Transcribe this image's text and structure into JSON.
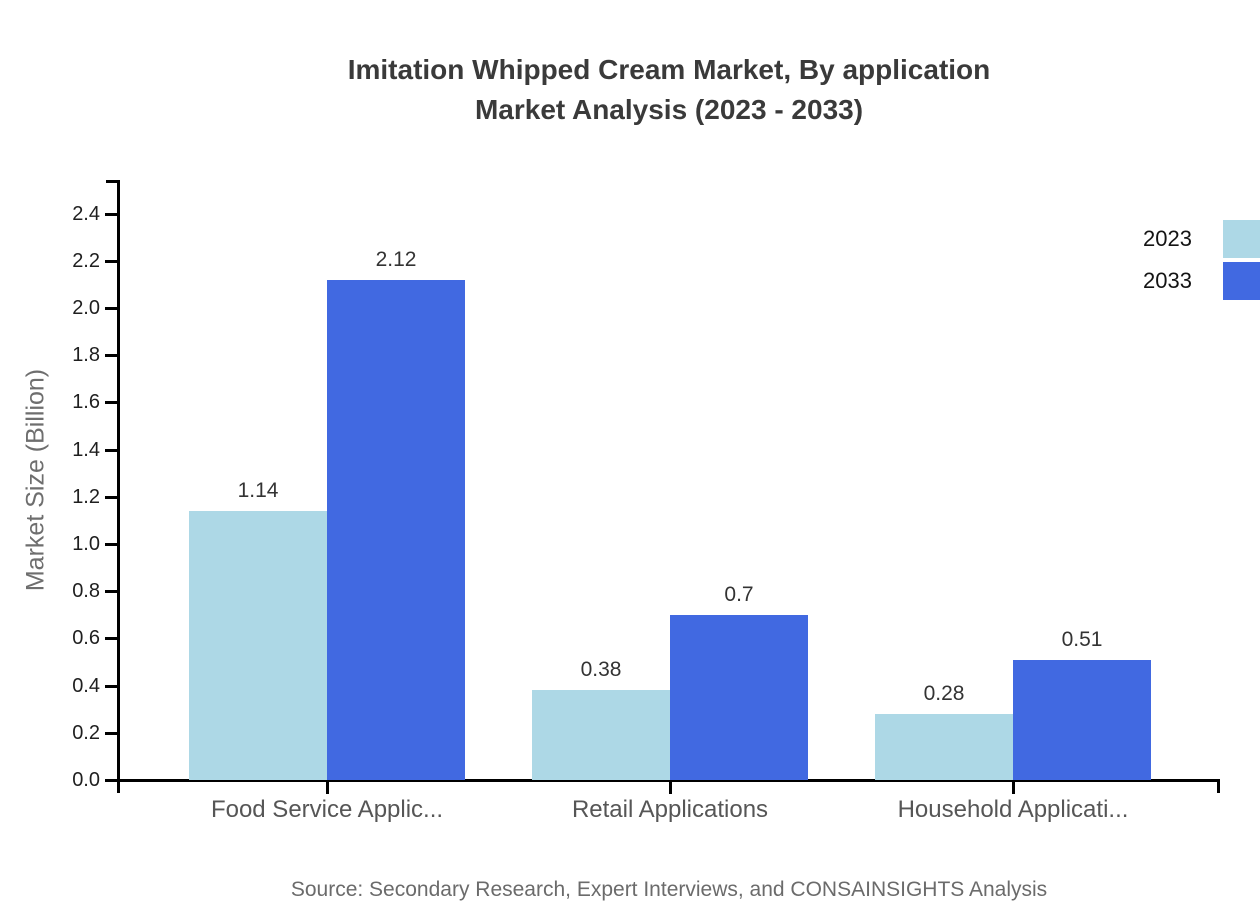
{
  "title": {
    "line1": "Imitation Whipped Cream Market, By application",
    "line2": "Market Analysis (2023 - 2033)"
  },
  "source": "Source: Secondary Research, Expert Interviews, and CONSAINSIGHTS Analysis",
  "legend": [
    {
      "label": "2023",
      "color": "#add8e6"
    },
    {
      "label": "2033",
      "color": "#4169e1"
    }
  ],
  "chart_data": {
    "type": "bar",
    "title": "Imitation Whipped Cream Market, By application Market Analysis (2023 - 2033)",
    "categories": [
      "Food Service Applic...",
      "Retail Applications",
      "Household Applicati..."
    ],
    "series": [
      {
        "name": "2023",
        "color": "#add8e6",
        "values": [
          1.14,
          0.38,
          0.28
        ],
        "labels": [
          "1.14",
          "0.38",
          "0.28"
        ]
      },
      {
        "name": "2033",
        "color": "#4169e1",
        "values": [
          2.12,
          0.7,
          0.51
        ],
        "labels": [
          "2.12",
          "0.7",
          "0.51"
        ]
      }
    ],
    "xlabel": "",
    "ylabel": "Market Size (Billion)",
    "ylim": [
      0,
      2.54
    ],
    "yticks": [
      0.0,
      0.2,
      0.4,
      0.6,
      0.8,
      1.0,
      1.2,
      1.4,
      1.6,
      1.8,
      2.0,
      2.2,
      2.4
    ],
    "grid": false,
    "legend_position": "top-right"
  }
}
